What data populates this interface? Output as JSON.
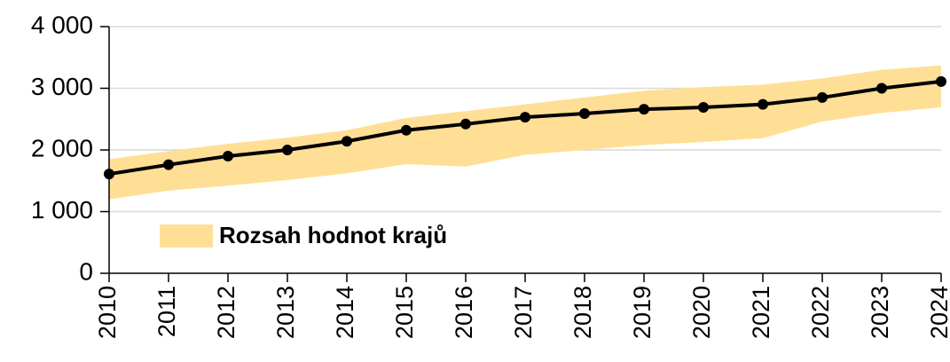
{
  "chart_data": {
    "type": "line",
    "categories": [
      "2010",
      "2011",
      "2012",
      "2013",
      "2014",
      "2015",
      "2016",
      "2017",
      "2018",
      "2019",
      "2020",
      "2021",
      "2022",
      "2023",
      "2024"
    ],
    "series": [
      {
        "name": "Rozsah hodnot krajů",
        "type": "band",
        "color": "#ffdf95",
        "lower": [
          1200,
          1340,
          1420,
          1510,
          1620,
          1770,
          1730,
          1920,
          2000,
          2080,
          2130,
          2190,
          2460,
          2600,
          2690
        ],
        "upper": [
          1850,
          1980,
          2100,
          2200,
          2320,
          2520,
          2630,
          2740,
          2850,
          2960,
          3020,
          3060,
          3160,
          3300,
          3370
        ]
      },
      {
        "type": "line",
        "color": "#000000",
        "values": [
          1610,
          1760,
          1900,
          2000,
          2140,
          2320,
          2420,
          2530,
          2590,
          2660,
          2690,
          2740,
          2850,
          3000,
          3110
        ]
      }
    ],
    "ylim": [
      0,
      4000
    ],
    "yticks": [
      0,
      {
        "value": 1000,
        "label": "1 000"
      },
      {
        "value": 2000,
        "label": "2 000"
      },
      {
        "value": 3000,
        "label": "3 000"
      },
      {
        "value": 4000,
        "label": "4 000"
      }
    ],
    "grid": true,
    "legend": "lower-left"
  }
}
